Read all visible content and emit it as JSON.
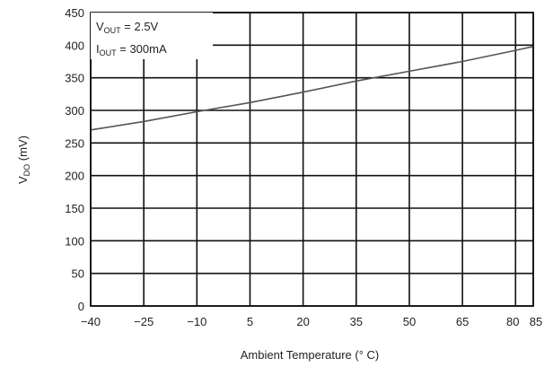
{
  "chart_data": {
    "type": "line",
    "xlabel": "Ambient Temperature (° C)",
    "ylabel": {
      "main": "V",
      "sub": "DO",
      "unit": "(mV)"
    },
    "xlim": [
      -40,
      85
    ],
    "ylim": [
      0,
      450
    ],
    "x_ticks": [
      -40,
      -25,
      -10,
      5,
      20,
      35,
      50,
      65,
      80,
      85
    ],
    "x_tick_labels": [
      "−40",
      "−25",
      "−10",
      "5",
      "20",
      "35",
      "50",
      "65",
      "80",
      "85"
    ],
    "y_ticks": [
      0,
      50,
      100,
      150,
      200,
      250,
      300,
      350,
      400,
      450
    ],
    "y_tick_labels": [
      "0",
      "50",
      "100",
      "150",
      "200",
      "250",
      "300",
      "350",
      "400",
      "450"
    ],
    "grid": true,
    "annotations": [
      {
        "main": "V",
        "sub": "OUT",
        "rest": " = 2.5V"
      },
      {
        "main": "I",
        "sub": "OUT",
        "rest": " = 300mA"
      }
    ],
    "series": [
      {
        "x": [
          -40,
          -25,
          -10,
          5,
          20,
          35,
          50,
          65,
          80,
          85
        ],
        "values": [
          270,
          283,
          298,
          312,
          328,
          345,
          360,
          375,
          392,
          398
        ]
      }
    ],
    "colors": {
      "line": "#555555",
      "grid": "#111111"
    }
  }
}
